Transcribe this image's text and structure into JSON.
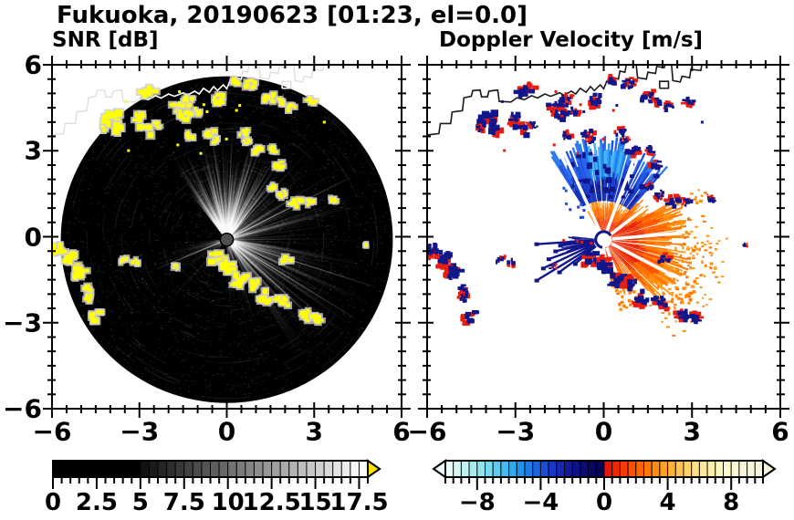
{
  "figure": {
    "title": "Fukuoka, 20190623 [01:23, el=0.0]",
    "left_title": "SNR [dB]",
    "right_title": "Doppler Velocity [m/s]"
  },
  "chart_data": [
    {
      "type": "heatmap",
      "title": "SNR [dB]",
      "units": "dB",
      "xlim": [
        -6,
        6
      ],
      "ylim": [
        -6,
        6
      ],
      "x_tick_values": [
        -6,
        -3,
        0,
        3,
        6
      ],
      "x_tick_labels": [
        "−6",
        "−3",
        "0",
        "3",
        "6"
      ],
      "y_tick_values": [
        6,
        3,
        0,
        -3,
        -6
      ],
      "y_tick_labels": [
        "6",
        "3",
        "0",
        "−3",
        "−6"
      ],
      "minor_tick_step": 0.5,
      "radar": {
        "center": [
          0,
          -0.1
        ],
        "radius": 5.7,
        "background": "#000000",
        "center_dot_radius": 0.2,
        "center_dot_color": "#4f4f4f"
      },
      "beam_fans": [
        {
          "a1": -38,
          "a2": 42,
          "rmax": 3.7,
          "rays": 260,
          "alpha": 0.4
        },
        {
          "a1": 42,
          "a2": 95,
          "rmax": 5.0,
          "rays": 90,
          "alpha": 0.15
        },
        {
          "a1": 95,
          "a2": 150,
          "rmax": 5.6,
          "rays": 150,
          "alpha": 0.2
        },
        {
          "a1": 150,
          "a2": 178,
          "rmax": 4.2,
          "rays": 36,
          "alpha": 0.09
        },
        {
          "a1": 222,
          "a2": 266,
          "rmax": 3.4,
          "rays": 40,
          "alpha": 0.08
        }
      ],
      "bright_rays": [
        [
          -25,
          3.2
        ],
        [
          -8,
          3.8
        ],
        [
          3,
          3.6
        ],
        [
          14,
          3.4
        ],
        [
          30,
          3.0
        ],
        [
          63,
          4.8
        ],
        [
          108,
          5.4
        ],
        [
          122,
          5.2
        ],
        [
          133,
          4.6
        ],
        [
          247,
          2.6
        ]
      ],
      "colorbar": {
        "range": [
          0,
          18
        ],
        "black_below": 5,
        "style": "grayscale",
        "minor_step": 0.5,
        "major_step": 2.5,
        "tick_values": [
          0,
          2.5,
          5,
          7.5,
          10,
          12.5,
          15,
          17.5
        ],
        "tick_labels": [
          "0",
          "2.5",
          "5",
          "7.5",
          "10",
          "12.5",
          "15",
          "17.5"
        ],
        "overflow_arrow": "right",
        "arrow_color": "#ffe400"
      }
    },
    {
      "type": "heatmap",
      "title": "Doppler Velocity [m/s]",
      "units": "m/s",
      "xlim": [
        -6,
        6
      ],
      "ylim": [
        -6,
        6
      ],
      "x_tick_values": [
        -6,
        -3,
        0,
        3,
        6
      ],
      "x_tick_labels": [
        "−6",
        "−3",
        "0",
        "3",
        "6"
      ],
      "y_tick_values": [],
      "y_tick_labels": [],
      "minor_tick_step": 0.5,
      "center_dot": {
        "radius": 0.24,
        "color": "#ffffff",
        "ring": "#10168c"
      },
      "orange_inner": 0.28,
      "orange_sectors": [
        [
          -30,
          40,
          1.35,
          0
        ],
        [
          40,
          60,
          1.8,
          0
        ],
        [
          60,
          105,
          2.7,
          3.9
        ],
        [
          105,
          140,
          2.9,
          3.6
        ],
        [
          140,
          170,
          1.9,
          2.6
        ]
      ],
      "blue_sector": {
        "a1": -33,
        "a2": 40,
        "rmin": 1.35,
        "rmax": 3.5
      },
      "azure_patch": {
        "a1": -12,
        "a2": 14,
        "rmin": 2.3,
        "rmax": 3.4
      },
      "white_gap_rays": [
        [
          -24,
          3.4
        ],
        [
          20,
          3.3
        ],
        [
          52,
          1.8
        ],
        [
          85,
          2.6
        ],
        [
          118,
          3.0
        ],
        [
          160,
          1.6
        ]
      ],
      "navy_rays": [
        [
          238,
          2.7
        ],
        [
          244,
          2.3
        ],
        [
          250,
          2.0
        ],
        [
          256,
          1.7
        ],
        [
          233,
          1.9
        ],
        [
          262,
          1.5
        ],
        [
          229,
          1.3
        ],
        [
          266,
          2.3
        ]
      ],
      "navy_wedge": [
        250,
        276,
        0.3,
        1.55
      ],
      "colorbar": {
        "range": [
          -10,
          10
        ],
        "minor_step": 0.5,
        "major_step": 4,
        "tick_values": [
          -8,
          -4,
          0,
          4,
          8
        ],
        "tick_labels": [
          "−8",
          "−4",
          "0",
          "4",
          "8"
        ],
        "arrows": "both",
        "left_arrow_color": "#effdfc",
        "right_arrow_color": "#f4f3dc",
        "neg_colors": [
          "#e9fcfa",
          "#d5f7f4",
          "#bff2f0",
          "#a8ecee",
          "#8fe4ee",
          "#74daf0",
          "#5accf2",
          "#43bcf2",
          "#2fa9f0",
          "#2293ec",
          "#1d7ce6",
          "#1b64de",
          "#1a4dd6",
          "#1838c8",
          "#1527b4",
          "#111a9e",
          "#0d1188",
          "#0a0c74",
          "#070862",
          "#050652"
        ],
        "pos_colors": [
          "#e71504",
          "#f02800",
          "#f83c00",
          "#fd5000",
          "#ff6400",
          "#ff7800",
          "#ff8c0e",
          "#ff9f22",
          "#ffb23a",
          "#ffc353",
          "#ffd26b",
          "#ffdf83",
          "#ffe999",
          "#fff0ac",
          "#fff5bd",
          "#fff8cb",
          "#fbf7d4",
          "#f8f6d8",
          "#f6f4da",
          "#f4f3dc"
        ]
      }
    }
  ],
  "echo_clusters": [
    [
      -2.7,
      5.0,
      0.26
    ],
    [
      -1.33,
      4.7,
      0.2
    ],
    [
      -1.08,
      4.38,
      0.16
    ],
    [
      -0.32,
      4.85,
      0.22
    ],
    [
      0.35,
      5.4,
      0.16
    ],
    [
      0.82,
      5.33,
      0.18
    ],
    [
      1.42,
      4.85,
      0.2
    ],
    [
      1.93,
      4.76,
      0.16
    ],
    [
      2.24,
      4.5,
      0.15
    ],
    [
      2.9,
      4.7,
      0.16
    ],
    [
      -3.9,
      4.12,
      0.28
    ],
    [
      -3.63,
      3.8,
      0.24
    ],
    [
      -4.16,
      3.74,
      0.12
    ],
    [
      -3.0,
      4.19,
      0.18
    ],
    [
      -2.8,
      3.7,
      0.22
    ],
    [
      -2.37,
      3.9,
      0.16
    ],
    [
      -1.7,
      4.5,
      0.18
    ],
    [
      -1.42,
      4.2,
      0.2
    ],
    [
      -1.23,
      3.53,
      0.15
    ],
    [
      -0.6,
      3.56,
      0.18
    ],
    [
      -0.38,
      3.37,
      0.14
    ],
    [
      0.57,
      3.63,
      0.16
    ],
    [
      0.66,
      3.37,
      0.13
    ],
    [
      1.1,
      3.0,
      0.18
    ],
    [
      1.6,
      3.06,
      0.14
    ],
    [
      1.77,
      2.52,
      0.18
    ],
    [
      1.6,
      1.73,
      0.14
    ],
    [
      1.93,
      1.5,
      0.16
    ],
    [
      2.37,
      1.15,
      0.2
    ],
    [
      2.84,
      1.18,
      0.16
    ],
    [
      3.66,
      1.28,
      0.13
    ],
    [
      2.05,
      -0.74,
      0.18
    ],
    [
      -0.3,
      -0.7,
      0.24
    ],
    [
      0.1,
      -1.06,
      0.26
    ],
    [
      0.47,
      -1.54,
      0.24
    ],
    [
      0.88,
      -1.7,
      0.22
    ],
    [
      1.3,
      -2.08,
      0.24
    ],
    [
      1.9,
      -2.24,
      0.2
    ],
    [
      2.68,
      -2.78,
      0.22
    ],
    [
      3.1,
      -2.87,
      0.18
    ],
    [
      -1.74,
      -1.06,
      0.11
    ],
    [
      -3.54,
      -0.81,
      0.13
    ],
    [
      -3.13,
      -0.87,
      0.13
    ],
    [
      -5.75,
      -0.48,
      0.24
    ],
    [
      -5.37,
      -0.81,
      0.28
    ],
    [
      -5.05,
      -1.29,
      0.24
    ],
    [
      -4.8,
      -1.83,
      0.18
    ],
    [
      -4.74,
      -2.14,
      0.16
    ],
    [
      -4.44,
      -2.82,
      0.24
    ],
    [
      4.7,
      -0.3,
      0.11
    ]
  ],
  "coastline": {
    "main": [
      [
        -6,
        3.55
      ],
      [
        -5.6,
        3.6
      ],
      [
        -5.55,
        3.95
      ],
      [
        -5.2,
        3.95
      ],
      [
        -5.15,
        4.35
      ],
      [
        -4.8,
        4.4
      ],
      [
        -4.75,
        4.85
      ],
      [
        -4.5,
        4.9
      ],
      [
        -4.45,
        5.1
      ],
      [
        -4.2,
        5.12
      ],
      [
        -4.15,
        4.88
      ],
      [
        -3.95,
        4.88
      ],
      [
        -3.9,
        5.08
      ],
      [
        -3.6,
        5.12
      ],
      [
        -3.55,
        4.72
      ],
      [
        -3.15,
        4.7
      ],
      [
        -2.95,
        4.85
      ],
      [
        -2.7,
        4.78
      ],
      [
        -2.45,
        4.92
      ],
      [
        -2.25,
        4.84
      ],
      [
        -2.0,
        4.98
      ],
      [
        -1.8,
        4.9
      ],
      [
        -1.5,
        5.02
      ],
      [
        -1.35,
        4.94
      ],
      [
        -1.1,
        5.08
      ],
      [
        -0.95,
        4.98
      ],
      [
        -0.8,
        5.18
      ],
      [
        -0.6,
        5.04
      ],
      [
        -0.45,
        5.24
      ],
      [
        -0.32,
        5.1
      ],
      [
        -0.12,
        5.3
      ],
      [
        0.0,
        5.16
      ],
      [
        0.1,
        5.42
      ],
      [
        0.26,
        5.32
      ],
      [
        0.3,
        5.56
      ],
      [
        0.5,
        5.5
      ],
      [
        0.55,
        5.78
      ],
      [
        0.72,
        5.74
      ],
      [
        0.78,
        6.05
      ]
    ],
    "pier1": [
      [
        1.1,
        6.05
      ],
      [
        1.15,
        5.55
      ],
      [
        1.45,
        5.5
      ],
      [
        1.5,
        5.74
      ],
      [
        1.76,
        5.7
      ],
      [
        1.8,
        5.94
      ],
      [
        2.06,
        5.9
      ],
      [
        2.1,
        6.05
      ]
    ],
    "pier2": [
      [
        2.3,
        6.05
      ],
      [
        2.35,
        5.45
      ],
      [
        2.6,
        5.4
      ],
      [
        2.66,
        5.6
      ],
      [
        2.92,
        5.55
      ],
      [
        2.96,
        5.84
      ],
      [
        3.3,
        5.8
      ],
      [
        3.34,
        6.05
      ]
    ],
    "square": [
      [
        1.9,
        5.18
      ],
      [
        2.2,
        5.18
      ],
      [
        2.2,
        5.42
      ],
      [
        1.9,
        5.42
      ],
      [
        1.9,
        5.18
      ]
    ]
  },
  "colors": {
    "echo_yellow": "#ffff00",
    "echo_halo": "#cfcfcf",
    "navy": "#10168c",
    "red": "#e81c10",
    "coast_left": "#ffffff",
    "coast_left_outside": "#dcdcdc",
    "coast_right": "#1a1a1a",
    "orange_inner_palette": [
      "#ef3a00",
      "#fd5000",
      "#e71504"
    ],
    "orange_mid_palette": [
      "#ff6a00",
      "#ff7800",
      "#fd5000"
    ],
    "orange_outer_palette": [
      "#ff8c0e",
      "#ff9f22",
      "#ff7800"
    ],
    "blue_inner_palette": [
      "#1a3ed0",
      "#1632c0",
      "#0e2496"
    ],
    "blue_mid_palette": [
      "#1c50e0",
      "#2a62ea",
      "#1a3ed0"
    ],
    "blue_outer_palette": [
      "#2e7df0",
      "#1c50e0",
      "#2a62ea"
    ],
    "azure_palette": [
      "#2e9bf0",
      "#49b4f8",
      "#1b7de8"
    ]
  }
}
